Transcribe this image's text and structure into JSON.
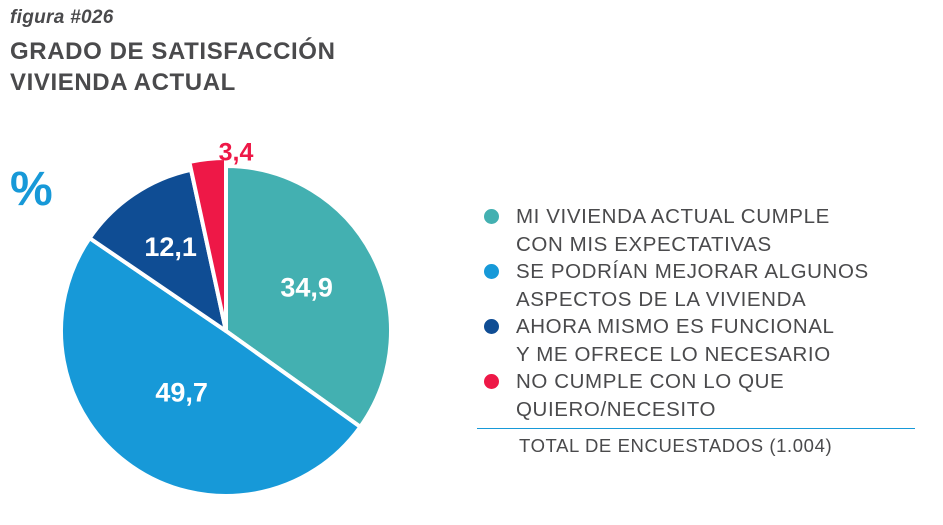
{
  "figure_label": "figura #026",
  "title_lines": [
    "GRADO DE SATISFACCIÓN",
    "VIVIENDA ACTUAL"
  ],
  "unit_label": "%",
  "total_label": "TOTAL DE ENCUESTADOS (1.004)",
  "chart_data": {
    "type": "pie",
    "title": "GRADO DE SATISFACCIÓN VIVIENDA ACTUAL",
    "unit": "%",
    "legend_position": "right",
    "slices": [
      {
        "label": "MI VIVIENDA ACTUAL CUMPLE CON MIS EXPECTATIVAS",
        "label_lines": [
          "MI VIVIENDA ACTUAL CUMPLE",
          "CON MIS EXPECTATIVAS"
        ],
        "value": 34.9,
        "display": "34,9",
        "color": "#43b0b1",
        "label_color": "#ffffff"
      },
      {
        "label": "SE PODRÍAN MEJORAR ALGUNOS ASPECTOS DE LA VIVIENDA",
        "label_lines": [
          "SE PODRÍAN MEJORAR ALGUNOS",
          "ASPECTOS DE LA VIVIENDA"
        ],
        "value": 49.7,
        "display": "49,7",
        "color": "#1799d8",
        "label_color": "#ffffff"
      },
      {
        "label": "AHORA MISMO ES FUNCIONAL Y ME OFRECE LO NECESARIO",
        "label_lines": [
          "AHORA MISMO ES FUNCIONAL",
          "Y ME OFRECE LO NECESARIO"
        ],
        "value": 12.1,
        "display": "12,1",
        "color": "#0f4d94",
        "label_color": "#ffffff"
      },
      {
        "label": "NO CUMPLE CON LO QUE QUIERO/NECESITO",
        "label_lines": [
          "NO CUMPLE CON LO QUE",
          "QUIERO/NECESITO"
        ],
        "value": 3.4,
        "display": "3,4",
        "color": "#ee1847",
        "label_color": "#ee1847"
      }
    ],
    "total_respondents": 1004
  }
}
